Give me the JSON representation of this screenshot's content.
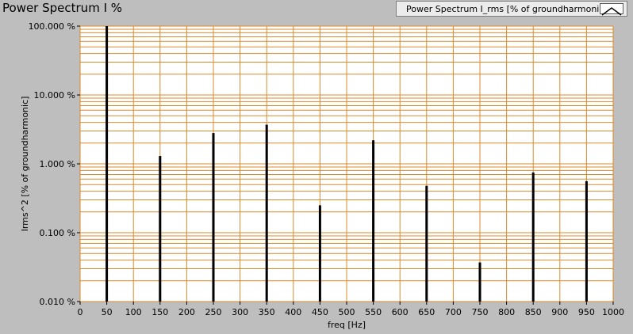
{
  "window": {
    "title": "Power Spectrum I %"
  },
  "legend": {
    "label": "Power Spectrum I_rms [% of groundharmonic]",
    "icon": "line-plot-icon"
  },
  "colors": {
    "background": "#bebebe",
    "plot_area": "#ffffff",
    "grid": "#d98a2b",
    "bars": "#000000"
  },
  "chart_data": {
    "type": "bar",
    "title": "Power Spectrum I %",
    "xlabel": "freq [Hz]",
    "ylabel": "Irms^2 [% of groundharmonic]",
    "xlim": [
      0,
      1000
    ],
    "ylim": [
      0.01,
      100
    ],
    "yscale": "log",
    "grid": true,
    "legend_position": "top-right",
    "x_ticks": [
      "0",
      "50",
      "100",
      "150",
      "200",
      "250",
      "300",
      "350",
      "400",
      "450",
      "500",
      "550",
      "600",
      "650",
      "700",
      "750",
      "800",
      "850",
      "900",
      "950",
      "1000"
    ],
    "y_ticks": [
      "0.010 %",
      "0.100 %",
      "1.000 %",
      "10.000 %",
      "100.000 %"
    ],
    "series": [
      {
        "name": "Power Spectrum I_rms [% of groundharmonic]",
        "x": [
          50,
          150,
          250,
          350,
          450,
          550,
          650,
          750,
          850,
          950
        ],
        "values": [
          100,
          1.3,
          2.8,
          3.7,
          0.25,
          2.2,
          0.48,
          0.037,
          0.75,
          0.56
        ]
      }
    ]
  }
}
